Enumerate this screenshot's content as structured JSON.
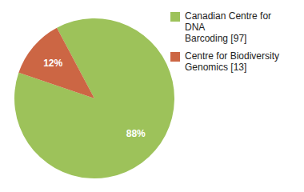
{
  "chart_data": {
    "type": "pie",
    "categories": [
      "Canadian Centre for DNA\nBarcoding [97]",
      "Centre for Biodiversity\nGenomics [13]"
    ],
    "values": [
      88,
      12
    ],
    "value_labels": [
      "88%",
      "12%"
    ],
    "colors": [
      "#9dc25a",
      "#cc6644"
    ],
    "data_labels": true,
    "legend": "upper right"
  }
}
